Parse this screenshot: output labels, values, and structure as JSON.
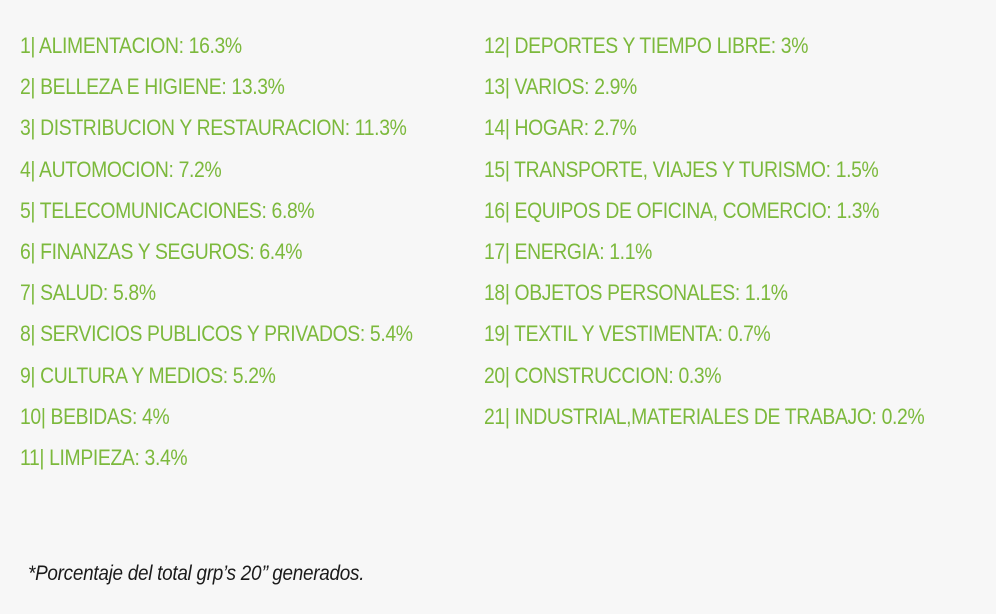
{
  "left_items": [
    "1| ALIMENTACION: 16.3%",
    "2| BELLEZA E HIGIENE: 13.3%",
    "3| DISTRIBUCION Y RESTAURACION: 11.3%",
    "4| AUTOMOCION: 7.2%",
    "5| TELECOMUNICACIONES: 6.8%",
    "6| FINANZAS Y SEGUROS: 6.4%",
    "7| SALUD: 5.8%",
    "8| SERVICIOS PUBLICOS Y PRIVADOS: 5.4%",
    "9| CULTURA Y MEDIOS: 5.2%",
    "10| BEBIDAS: 4%",
    "11| LIMPIEZA: 3.4%"
  ],
  "right_items": [
    "12| DEPORTES Y TIEMPO LIBRE: 3%",
    "13| VARIOS: 2.9%",
    "14| HOGAR: 2.7%",
    "15| TRANSPORTE, VIAJES Y TURISMO: 1.5%",
    "16| EQUIPOS DE OFICINA, COMERCIO: 1.3%",
    "17| ENERGIA: 1.1%",
    "18| OBJETOS PERSONALES: 1.1%",
    "19| TEXTIL Y VESTIMENTA: 0.7%",
    "20| CONSTRUCCION: 0.3%",
    "21| INDUSTRIAL,MATERIALES DE TRABAJO: 0.2%"
  ],
  "footnote": "*Porcentaje del total grp’s 20’’ generados.",
  "colors": {
    "item_text": "#7cb93c",
    "footnote_text": "#1a1a1a",
    "background": "#f7f7f7"
  }
}
